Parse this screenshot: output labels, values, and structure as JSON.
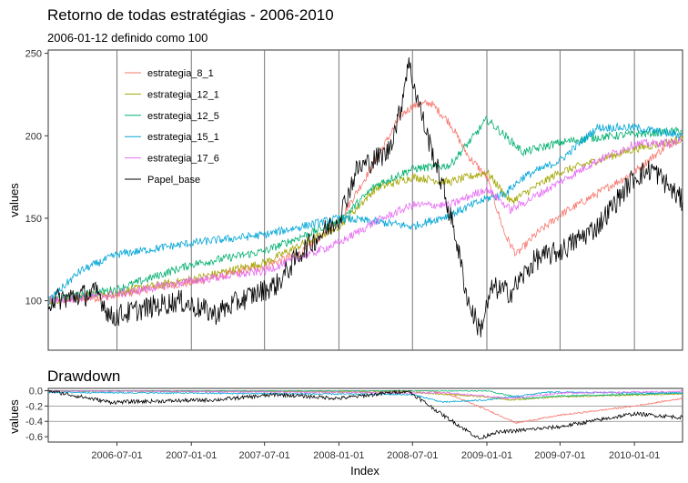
{
  "colors": {
    "estrategia_8_1": "#f8766d",
    "estrategia_12_1": "#a3a500",
    "estrategia_12_5": "#00b06f",
    "estrategia_15_1": "#00a5d6",
    "estrategia_17_6": "#e76bf3",
    "Papel_base": "#000000"
  },
  "chart_data": [
    {
      "type": "line",
      "title": "Retorno de todas estratégias - 2006-2010",
      "subtitle": "2006-01-12 definido como 100",
      "xlabel": "",
      "ylabel": "values",
      "ylim": [
        70,
        252
      ],
      "yticks": [
        100,
        150,
        200,
        250
      ],
      "xlim": [
        "2006-01-12",
        "2010-04-30"
      ],
      "vlines": [
        "2006-07-01",
        "2007-01-01",
        "2007-07-01",
        "2008-01-01",
        "2008-07-01",
        "2009-01-01",
        "2009-07-01",
        "2010-01-01"
      ],
      "grid": "vertical lines only",
      "legend_position": "top-left",
      "series": [
        {
          "name": "estrategia_8_1",
          "key": "estrategia_8_1",
          "values": [
            [
              "2006-01-12",
              100
            ],
            [
              "2006-04-01",
              101
            ],
            [
              "2006-07-01",
              103
            ],
            [
              "2006-10-01",
              108
            ],
            [
              "2007-01-01",
              111
            ],
            [
              "2007-04-01",
              116
            ],
            [
              "2007-07-01",
              121
            ],
            [
              "2007-10-01",
              129
            ],
            [
              "2008-01-01",
              148
            ],
            [
              "2008-04-01",
              185
            ],
            [
              "2008-06-01",
              212
            ],
            [
              "2008-07-01",
              218
            ],
            [
              "2008-08-15",
              220
            ],
            [
              "2008-10-01",
              208
            ],
            [
              "2008-11-15",
              188
            ],
            [
              "2009-01-01",
              175
            ],
            [
              "2009-02-15",
              140
            ],
            [
              "2009-03-15",
              128
            ],
            [
              "2009-05-01",
              140
            ],
            [
              "2009-07-01",
              152
            ],
            [
              "2009-10-01",
              165
            ],
            [
              "2010-01-01",
              178
            ],
            [
              "2010-03-01",
              190
            ],
            [
              "2010-04-30",
              200
            ]
          ]
        },
        {
          "name": "estrategia_12_1",
          "key": "estrategia_12_1",
          "values": [
            [
              "2006-01-12",
              100
            ],
            [
              "2006-07-01",
              105
            ],
            [
              "2007-01-01",
              113
            ],
            [
              "2007-07-01",
              123
            ],
            [
              "2008-01-01",
              145
            ],
            [
              "2008-04-01",
              168
            ],
            [
              "2008-07-01",
              175
            ],
            [
              "2008-10-01",
              172
            ],
            [
              "2009-01-01",
              178
            ],
            [
              "2009-03-01",
              160
            ],
            [
              "2009-07-01",
              178
            ],
            [
              "2010-01-01",
              192
            ],
            [
              "2010-04-30",
              198
            ]
          ]
        },
        {
          "name": "estrategia_12_5",
          "key": "estrategia_12_5",
          "values": [
            [
              "2006-01-12",
              100
            ],
            [
              "2006-07-01",
              107
            ],
            [
              "2007-01-01",
              122
            ],
            [
              "2007-07-01",
              130
            ],
            [
              "2008-01-01",
              148
            ],
            [
              "2008-04-01",
              170
            ],
            [
              "2008-07-01",
              180
            ],
            [
              "2008-10-01",
              182
            ],
            [
              "2008-12-01",
              200
            ],
            [
              "2009-01-01",
              210
            ],
            [
              "2009-02-15",
              200
            ],
            [
              "2009-04-01",
              190
            ],
            [
              "2009-07-01",
              196
            ],
            [
              "2009-10-01",
              199
            ],
            [
              "2010-01-01",
              201
            ],
            [
              "2010-04-30",
              203
            ]
          ]
        },
        {
          "name": "estrategia_15_1",
          "key": "estrategia_15_1",
          "values": [
            [
              "2006-01-12",
              100
            ],
            [
              "2006-04-01",
              118
            ],
            [
              "2006-07-01",
              128
            ],
            [
              "2007-01-01",
              135
            ],
            [
              "2007-07-01",
              140
            ],
            [
              "2008-01-01",
              150
            ],
            [
              "2008-04-01",
              148
            ],
            [
              "2008-07-01",
              145
            ],
            [
              "2008-10-01",
              152
            ],
            [
              "2009-01-01",
              162
            ],
            [
              "2009-02-15",
              165
            ],
            [
              "2009-04-01",
              175
            ],
            [
              "2009-07-01",
              185
            ],
            [
              "2009-10-01",
              205
            ],
            [
              "2010-01-01",
              205
            ],
            [
              "2010-04-30",
              200
            ]
          ]
        },
        {
          "name": "estrategia_17_6",
          "key": "estrategia_17_6",
          "values": [
            [
              "2006-01-12",
              100
            ],
            [
              "2006-07-01",
              104
            ],
            [
              "2007-01-01",
              112
            ],
            [
              "2007-07-01",
              118
            ],
            [
              "2008-01-01",
              135
            ],
            [
              "2008-04-01",
              148
            ],
            [
              "2008-07-01",
              158
            ],
            [
              "2008-10-01",
              158
            ],
            [
              "2009-01-01",
              168
            ],
            [
              "2009-03-01",
              155
            ],
            [
              "2009-07-01",
              172
            ],
            [
              "2009-10-01",
              185
            ],
            [
              "2010-01-01",
              195
            ],
            [
              "2010-04-30",
              196
            ]
          ]
        },
        {
          "name": "Papel_base",
          "key": "Papel_base",
          "values": [
            [
              "2006-01-12",
              100
            ],
            [
              "2006-05-15",
              105
            ],
            [
              "2006-06-15",
              90
            ],
            [
              "2006-09-01",
              95
            ],
            [
              "2006-12-01",
              100
            ],
            [
              "2007-03-01",
              92
            ],
            [
              "2007-05-01",
              100
            ],
            [
              "2007-08-01",
              110
            ],
            [
              "2007-10-01",
              130
            ],
            [
              "2008-01-01",
              150
            ],
            [
              "2008-02-15",
              180
            ],
            [
              "2008-05-01",
              190
            ],
            [
              "2008-06-01",
              215
            ],
            [
              "2008-06-20",
              245
            ],
            [
              "2008-08-01",
              205
            ],
            [
              "2008-09-15",
              168
            ],
            [
              "2008-10-15",
              140
            ],
            [
              "2008-11-15",
              100
            ],
            [
              "2008-12-15",
              82
            ],
            [
              "2009-01-15",
              108
            ],
            [
              "2009-03-01",
              105
            ],
            [
              "2009-05-01",
              125
            ],
            [
              "2009-07-01",
              130
            ],
            [
              "2009-10-01",
              145
            ],
            [
              "2010-01-01",
              175
            ],
            [
              "2010-02-15",
              180
            ],
            [
              "2010-04-30",
              160
            ]
          ]
        }
      ]
    },
    {
      "type": "line",
      "title": "Drawdown",
      "xlabel": "Index",
      "ylabel": "values",
      "ylim": [
        -0.67,
        0.03
      ],
      "yticks": [
        0.0,
        -0.2,
        -0.4,
        -0.6
      ],
      "ytick_labels": [
        "0.0",
        "-0.2",
        "-0.4",
        "-0.6"
      ],
      "xlim": [
        "2006-01-12",
        "2010-04-30"
      ],
      "xticks": [
        "2006-07-01",
        "2007-01-01",
        "2007-07-01",
        "2008-01-01",
        "2008-07-01",
        "2009-01-01",
        "2009-07-01",
        "2010-01-01"
      ],
      "hlines": [
        -0.2,
        -0.4
      ],
      "series": [
        {
          "key": "estrategia_8_1",
          "values": [
            [
              "2006-01-12",
              0
            ],
            [
              "2008-08-15",
              0
            ],
            [
              "2008-10-01",
              -0.05
            ],
            [
              "2009-01-01",
              -0.25
            ],
            [
              "2009-03-15",
              -0.42
            ],
            [
              "2009-07-01",
              -0.32
            ],
            [
              "2010-01-01",
              -0.2
            ],
            [
              "2010-04-30",
              -0.1
            ]
          ]
        },
        {
          "key": "estrategia_12_1",
          "values": [
            [
              "2006-01-12",
              0
            ],
            [
              "2008-07-01",
              -0.02
            ],
            [
              "2009-01-01",
              -0.08
            ],
            [
              "2009-03-01",
              -0.12
            ],
            [
              "2009-07-01",
              -0.08
            ],
            [
              "2010-04-30",
              -0.04
            ]
          ]
        },
        {
          "key": "estrategia_12_5",
          "values": [
            [
              "2006-01-12",
              0
            ],
            [
              "2009-01-01",
              0
            ],
            [
              "2009-04-01",
              -0.1
            ],
            [
              "2009-07-01",
              -0.07
            ],
            [
              "2010-04-30",
              -0.03
            ]
          ]
        },
        {
          "key": "estrategia_15_1",
          "values": [
            [
              "2006-01-12",
              -0.02
            ],
            [
              "2008-07-01",
              -0.05
            ],
            [
              "2008-09-15",
              -0.15
            ],
            [
              "2009-01-01",
              -0.12
            ],
            [
              "2009-06-01",
              -0.02
            ],
            [
              "2010-04-30",
              -0.03
            ]
          ]
        },
        {
          "key": "estrategia_17_6",
          "values": [
            [
              "2006-01-12",
              0
            ],
            [
              "2008-10-01",
              -0.03
            ],
            [
              "2009-03-01",
              -0.1
            ],
            [
              "2009-07-01",
              -0.03
            ],
            [
              "2010-04-30",
              -0.01
            ]
          ]
        },
        {
          "key": "Papel_base",
          "values": [
            [
              "2006-01-12",
              0
            ],
            [
              "2006-06-15",
              -0.15
            ],
            [
              "2007-03-01",
              -0.12
            ],
            [
              "2007-08-01",
              -0.05
            ],
            [
              "2008-01-01",
              -0.1
            ],
            [
              "2008-06-20",
              0
            ],
            [
              "2008-09-15",
              -0.32
            ],
            [
              "2008-12-15",
              -0.63
            ],
            [
              "2009-01-15",
              -0.55
            ],
            [
              "2009-07-01",
              -0.47
            ],
            [
              "2010-01-01",
              -0.3
            ],
            [
              "2010-04-30",
              -0.35
            ]
          ]
        }
      ]
    }
  ]
}
